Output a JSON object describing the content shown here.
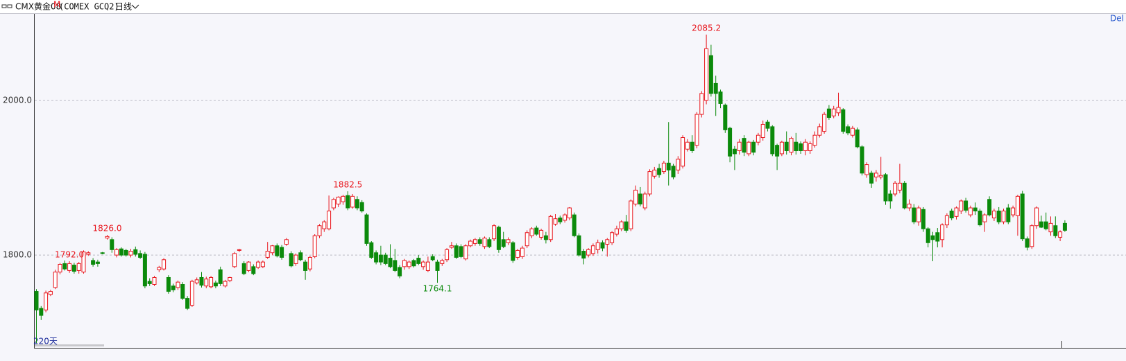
{
  "chart_data": {
    "type": "candlestick",
    "title": "CMX黄金08",
    "title_mark": "M",
    "subtitle": "(COMEX GCQ2)",
    "period": "日线",
    "count": "220天",
    "corner_label": "Del",
    "up_color": "#e8141b",
    "down_color": "#0b8a0b",
    "grid": true,
    "ylim": [
      1680,
      2112
    ],
    "yticks": [
      {
        "value": 1800,
        "label": "1800.0"
      },
      {
        "value": 2000,
        "label": "2000.0"
      }
    ],
    "annotations": [
      {
        "value": 1826,
        "label": "1826.0"
      },
      {
        "value": 1882.5,
        "label": "1882.5"
      },
      {
        "value": 1764.1,
        "label": "1764.1"
      },
      {
        "value": 2085.2,
        "label": "2085.2"
      },
      {
        "value": 1792.0,
        "label": "1792.0"
      }
    ],
    "ohlc": [
      [
        1753,
        1756,
        1686,
        1729
      ],
      [
        1731,
        1734,
        1716,
        1722
      ],
      [
        1729,
        1754,
        1726,
        1751
      ],
      [
        1749,
        1755,
        1747,
        1753
      ],
      [
        1758,
        1781,
        1756,
        1778
      ],
      [
        1778,
        1790,
        1775,
        1788
      ],
      [
        1789,
        1793,
        1780,
        1782
      ],
      [
        1780,
        1792,
        1777,
        1789
      ],
      [
        1787,
        1790,
        1776,
        1779
      ],
      [
        1780,
        1791,
        1776,
        1789
      ],
      [
        1778,
        1806,
        1776,
        1804
      ],
      [
        1801,
        1805,
        1799,
        1803
      ],
      [
        1793,
        1796,
        1785,
        1788
      ],
      [
        1791,
        1794,
        1785,
        1789
      ],
      [
        1803,
        1804,
        1801,
        1802
      ],
      [
        1822,
        1826,
        1820,
        1824
      ],
      [
        1820,
        1823,
        1803,
        1807
      ],
      [
        1800,
        1809,
        1797,
        1807
      ],
      [
        1808,
        1810,
        1798,
        1800
      ],
      [
        1806,
        1808,
        1798,
        1800
      ],
      [
        1800,
        1808,
        1797,
        1805
      ],
      [
        1807,
        1811,
        1798,
        1801
      ],
      [
        1802,
        1806,
        1795,
        1797
      ],
      [
        1801,
        1804,
        1757,
        1760
      ],
      [
        1766,
        1770,
        1760,
        1763
      ],
      [
        1762,
        1773,
        1760,
        1771
      ],
      [
        1781,
        1786,
        1778,
        1784
      ],
      [
        1782,
        1796,
        1780,
        1794
      ],
      [
        1771,
        1774,
        1750,
        1753
      ],
      [
        1760,
        1763,
        1752,
        1755
      ],
      [
        1758,
        1767,
        1755,
        1765
      ],
      [
        1762,
        1765,
        1742,
        1744
      ],
      [
        1744,
        1747,
        1729,
        1731
      ],
      [
        1735,
        1768,
        1733,
        1766
      ],
      [
        1764,
        1771,
        1762,
        1768
      ],
      [
        1771,
        1778,
        1758,
        1761
      ],
      [
        1760,
        1772,
        1757,
        1769
      ],
      [
        1759,
        1773,
        1757,
        1771
      ],
      [
        1764,
        1767,
        1757,
        1760
      ],
      [
        1781,
        1785,
        1760,
        1763
      ],
      [
        1760,
        1768,
        1758,
        1766
      ],
      [
        1767,
        1772,
        1765,
        1771
      ],
      [
        1785,
        1804,
        1783,
        1802
      ],
      [
        1806,
        1808,
        1804,
        1807
      ],
      [
        1789,
        1792,
        1774,
        1776
      ],
      [
        1780,
        1792,
        1778,
        1791
      ],
      [
        1785,
        1788,
        1774,
        1776
      ],
      [
        1784,
        1793,
        1782,
        1791
      ],
      [
        1785,
        1793,
        1783,
        1791
      ],
      [
        1797,
        1817,
        1795,
        1805
      ],
      [
        1803,
        1813,
        1800,
        1812
      ],
      [
        1812,
        1815,
        1797,
        1799
      ],
      [
        1810,
        1813,
        1794,
        1797
      ],
      [
        1814,
        1822,
        1812,
        1820
      ],
      [
        1802,
        1805,
        1784,
        1786
      ],
      [
        1789,
        1802,
        1786,
        1800
      ],
      [
        1803,
        1806,
        1792,
        1794
      ],
      [
        1791,
        1794,
        1768,
        1780
      ],
      [
        1782,
        1799,
        1779,
        1797
      ],
      [
        1798,
        1827,
        1796,
        1825
      ],
      [
        1825,
        1840,
        1822,
        1838
      ],
      [
        1834,
        1845,
        1830,
        1843
      ],
      [
        1834,
        1877,
        1832,
        1857
      ],
      [
        1861,
        1874,
        1858,
        1872
      ],
      [
        1866,
        1876,
        1862,
        1875
      ],
      [
        1869,
        1878,
        1865,
        1876
      ],
      [
        1877,
        1882.5,
        1858,
        1861
      ],
      [
        1862,
        1879,
        1860,
        1876
      ],
      [
        1872,
        1876,
        1858,
        1861
      ],
      [
        1868,
        1871,
        1855,
        1857
      ],
      [
        1852,
        1854,
        1812,
        1815
      ],
      [
        1816,
        1818,
        1795,
        1797
      ],
      [
        1803,
        1806,
        1788,
        1791
      ],
      [
        1800,
        1812,
        1787,
        1791
      ],
      [
        1800,
        1803,
        1787,
        1789
      ],
      [
        1796,
        1814,
        1783,
        1785
      ],
      [
        1793,
        1808,
        1778,
        1780
      ],
      [
        1784,
        1787,
        1770,
        1773
      ],
      [
        1785,
        1795,
        1781,
        1793
      ],
      [
        1785,
        1793,
        1782,
        1791
      ],
      [
        1793,
        1795,
        1784,
        1786
      ],
      [
        1796,
        1800,
        1787,
        1789
      ],
      [
        1785,
        1793,
        1781,
        1791
      ],
      [
        1780,
        1798,
        1778,
        1791
      ],
      [
        1798,
        1801,
        1792,
        1794
      ],
      [
        1791,
        1794,
        1764.1,
        1780
      ],
      [
        1789,
        1795,
        1786,
        1793
      ],
      [
        1794,
        1809,
        1791,
        1807
      ],
      [
        1810,
        1817,
        1808,
        1812
      ],
      [
        1812,
        1815,
        1795,
        1797
      ],
      [
        1811,
        1814,
        1796,
        1798
      ],
      [
        1795,
        1814,
        1793,
        1812
      ],
      [
        1812,
        1820,
        1810,
        1818
      ],
      [
        1815,
        1822,
        1812,
        1820
      ],
      [
        1820,
        1823,
        1812,
        1815
      ],
      [
        1811,
        1824,
        1808,
        1822
      ],
      [
        1820,
        1823,
        1809,
        1811
      ],
      [
        1821,
        1840,
        1818,
        1838
      ],
      [
        1836,
        1838,
        1803,
        1807
      ],
      [
        1820,
        1830,
        1809,
        1811
      ],
      [
        1816,
        1823,
        1813,
        1820
      ],
      [
        1816,
        1818,
        1790,
        1793
      ],
      [
        1797,
        1808,
        1794,
        1806
      ],
      [
        1798,
        1812,
        1795,
        1809
      ],
      [
        1812,
        1832,
        1809,
        1829
      ],
      [
        1825,
        1836,
        1822,
        1834
      ],
      [
        1835,
        1838,
        1825,
        1827
      ],
      [
        1823,
        1834,
        1820,
        1832
      ],
      [
        1825,
        1830,
        1815,
        1820
      ],
      [
        1820,
        1852,
        1817,
        1850
      ],
      [
        1840,
        1853,
        1838,
        1847
      ],
      [
        1848,
        1851,
        1840,
        1843
      ],
      [
        1845,
        1854,
        1842,
        1852
      ],
      [
        1848,
        1862,
        1845,
        1861
      ],
      [
        1852,
        1855,
        1823,
        1825
      ],
      [
        1825,
        1828,
        1798,
        1800
      ],
      [
        1805,
        1808,
        1788,
        1796
      ],
      [
        1800,
        1809,
        1797,
        1807
      ],
      [
        1802,
        1815,
        1799,
        1812
      ],
      [
        1807,
        1820,
        1802,
        1816
      ],
      [
        1816,
        1819,
        1805,
        1809
      ],
      [
        1814,
        1822,
        1798,
        1820
      ],
      [
        1816,
        1831,
        1813,
        1829
      ],
      [
        1827,
        1838,
        1824,
        1834
      ],
      [
        1834,
        1845,
        1831,
        1843
      ],
      [
        1843,
        1852,
        1829,
        1832
      ],
      [
        1834,
        1872,
        1831,
        1870
      ],
      [
        1866,
        1890,
        1863,
        1884
      ],
      [
        1879,
        1888,
        1863,
        1866
      ],
      [
        1861,
        1882,
        1858,
        1879
      ],
      [
        1879,
        1911,
        1876,
        1908
      ],
      [
        1902,
        1914,
        1899,
        1910
      ],
      [
        1912,
        1918,
        1900,
        1904
      ],
      [
        1908,
        1922,
        1905,
        1919
      ],
      [
        1919,
        1972,
        1890,
        1910
      ],
      [
        1915,
        1918,
        1898,
        1901
      ],
      [
        1910,
        1928,
        1905,
        1924
      ],
      [
        1915,
        1955,
        1912,
        1952
      ],
      [
        1937,
        1950,
        1934,
        1946
      ],
      [
        1946,
        1955,
        1932,
        1935
      ],
      [
        1942,
        1985,
        1938,
        1982
      ],
      [
        1982,
        2012,
        1978,
        2009
      ],
      [
        2000,
        2085.2,
        1995,
        2067
      ],
      [
        2058,
        2072,
        2005,
        2009
      ],
      [
        2022,
        2032,
        1980,
        2009
      ],
      [
        2011,
        2014,
        1990,
        1996
      ],
      [
        1994,
        1996,
        1958,
        1962
      ],
      [
        1964,
        1966,
        1920,
        1928
      ],
      [
        1937,
        1941,
        1910,
        1931
      ],
      [
        1935,
        1950,
        1930,
        1946
      ],
      [
        1951,
        1955,
        1928,
        1933
      ],
      [
        1931,
        1948,
        1928,
        1946
      ],
      [
        1946,
        1949,
        1929,
        1933
      ],
      [
        1946,
        1958,
        1942,
        1955
      ],
      [
        1952,
        1974,
        1948,
        1969
      ],
      [
        1972,
        1975,
        1960,
        1964
      ],
      [
        1966,
        1968,
        1928,
        1931
      ],
      [
        1942,
        1944,
        1910,
        1928
      ],
      [
        1931,
        1948,
        1928,
        1946
      ],
      [
        1946,
        1960,
        1930,
        1935
      ],
      [
        1933,
        1953,
        1929,
        1951
      ],
      [
        1946,
        1958,
        1930,
        1935
      ],
      [
        1944,
        1947,
        1931,
        1935
      ],
      [
        1935,
        1950,
        1929,
        1946
      ],
      [
        1935,
        1947,
        1931,
        1944
      ],
      [
        1942,
        1960,
        1939,
        1955
      ],
      [
        1955,
        1970,
        1952,
        1966
      ],
      [
        1960,
        1985,
        1957,
        1982
      ],
      [
        1989,
        1994,
        1975,
        1978
      ],
      [
        1980,
        1993,
        1977,
        1989
      ],
      [
        1984,
        2010,
        1980,
        1991
      ],
      [
        1988,
        1990,
        1957,
        1960
      ],
      [
        1966,
        1969,
        1955,
        1958
      ],
      [
        1955,
        1967,
        1952,
        1964
      ],
      [
        1962,
        1965,
        1938,
        1940
      ],
      [
        1940,
        1942,
        1903,
        1906
      ],
      [
        1904,
        1920,
        1900,
        1917
      ],
      [
        1906,
        1909,
        1887,
        1893
      ],
      [
        1901,
        1910,
        1895,
        1906
      ],
      [
        1901,
        1927,
        1898,
        1903
      ],
      [
        1904,
        1906,
        1865,
        1870
      ],
      [
        1879,
        1884,
        1860,
        1870
      ],
      [
        1879,
        1896,
        1876,
        1893
      ],
      [
        1884,
        1918,
        1880,
        1893
      ],
      [
        1893,
        1896,
        1859,
        1861
      ],
      [
        1861,
        1872,
        1857,
        1866
      ],
      [
        1861,
        1866,
        1840,
        1843
      ],
      [
        1843,
        1864,
        1838,
        1861
      ],
      [
        1859,
        1862,
        1830,
        1834
      ],
      [
        1834,
        1836,
        1810,
        1816
      ],
      [
        1825,
        1830,
        1792.0,
        1820
      ],
      [
        1829,
        1835,
        1810,
        1818
      ],
      [
        1820,
        1841,
        1810,
        1839
      ],
      [
        1839,
        1854,
        1835,
        1851
      ],
      [
        1857,
        1860,
        1845,
        1848
      ],
      [
        1850,
        1863,
        1846,
        1861
      ],
      [
        1857,
        1872,
        1853,
        1870
      ],
      [
        1870,
        1874,
        1855,
        1858
      ],
      [
        1852,
        1864,
        1849,
        1861
      ],
      [
        1861,
        1868,
        1852,
        1857
      ],
      [
        1857,
        1860,
        1837,
        1839
      ],
      [
        1843,
        1854,
        1830,
        1852
      ],
      [
        1872,
        1876,
        1850,
        1852
      ],
      [
        1848,
        1860,
        1844,
        1857
      ],
      [
        1857,
        1862,
        1840,
        1843
      ],
      [
        1843,
        1860,
        1840,
        1857
      ],
      [
        1861,
        1866,
        1840,
        1843
      ],
      [
        1852,
        1864,
        1849,
        1861
      ],
      [
        1851,
        1878,
        1825,
        1876
      ],
      [
        1879,
        1883,
        1818,
        1821
      ],
      [
        1821,
        1824,
        1806,
        1810
      ],
      [
        1811,
        1840,
        1808,
        1838
      ],
      [
        1838,
        1863,
        1834,
        1861
      ],
      [
        1843,
        1851,
        1835,
        1836
      ],
      [
        1843,
        1855,
        1832,
        1834
      ],
      [
        1830,
        1850,
        1825,
        1841
      ],
      [
        1838,
        1850,
        1822,
        1825
      ],
      [
        1823,
        1832,
        1818,
        1830
      ],
      [
        1841,
        1845,
        1830,
        1832
      ]
    ]
  }
}
